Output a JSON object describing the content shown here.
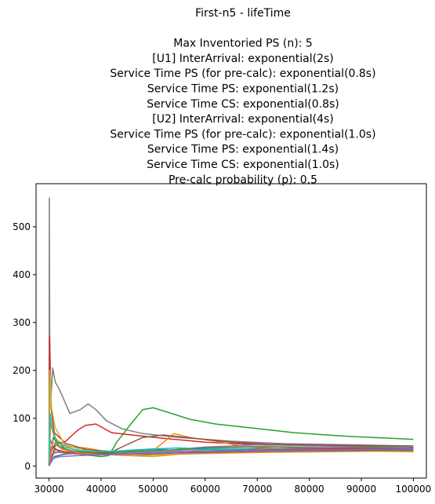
{
  "chart_data": {
    "type": "line",
    "title_lines": [
      "First-n5 - lifeTime",
      "",
      "Max Inventoried PS (n): 5",
      "[U1] InterArrival: exponential(2s)",
      "Service Time PS (for pre-calc): exponential(0.8s)",
      "Service Time PS: exponential(1.2s)",
      "Service Time CS: exponential(0.8s)",
      "[U2] InterArrival: exponential(4s)",
      "Service Time PS (for pre-calc): exponential(1.0s)",
      "Service Time PS: exponential(1.4s)",
      "Service Time CS: exponential(1.0s)",
      "Pre-calc probability (p): 0.5"
    ],
    "xlim": [
      27500,
      102500
    ],
    "ylim": [
      -25,
      590
    ],
    "x_ticks": [
      30000,
      40000,
      50000,
      60000,
      70000,
      80000,
      90000,
      100000
    ],
    "y_ticks": [
      0,
      100,
      200,
      300,
      400,
      500
    ],
    "grid": false,
    "series": [
      {
        "color": "#7f7f7f",
        "points": [
          [
            30000,
            0
          ],
          [
            30050,
            560
          ],
          [
            30150,
            180
          ],
          [
            30400,
            150
          ],
          [
            30700,
            205
          ],
          [
            31200,
            175
          ],
          [
            32000,
            160
          ],
          [
            34000,
            110
          ],
          [
            36000,
            118
          ],
          [
            37500,
            130
          ],
          [
            39000,
            118
          ],
          [
            41000,
            95
          ],
          [
            44000,
            78
          ],
          [
            48000,
            68
          ],
          [
            55000,
            60
          ],
          [
            65000,
            52
          ],
          [
            75000,
            47
          ],
          [
            85000,
            45
          ],
          [
            100000,
            42
          ]
        ]
      },
      {
        "color": "#2ca02c",
        "points": [
          [
            30000,
            20
          ],
          [
            31500,
            55
          ],
          [
            33000,
            35
          ],
          [
            36000,
            25
          ],
          [
            40000,
            20
          ],
          [
            41500,
            22
          ],
          [
            43000,
            50
          ],
          [
            45500,
            85
          ],
          [
            48000,
            118
          ],
          [
            50000,
            122
          ],
          [
            53000,
            112
          ],
          [
            57000,
            98
          ],
          [
            62000,
            88
          ],
          [
            67000,
            82
          ],
          [
            72000,
            76
          ],
          [
            77000,
            70
          ],
          [
            82000,
            66
          ],
          [
            88000,
            62
          ],
          [
            94000,
            59
          ],
          [
            100000,
            56
          ]
        ]
      },
      {
        "color": "#d62728",
        "points": [
          [
            30000,
            5
          ],
          [
            30100,
            270
          ],
          [
            30400,
            120
          ],
          [
            31000,
            70
          ],
          [
            33000,
            50
          ],
          [
            35500,
            75
          ],
          [
            37000,
            85
          ],
          [
            39000,
            88
          ],
          [
            42000,
            70
          ],
          [
            46000,
            65
          ],
          [
            52000,
            58
          ],
          [
            60000,
            50
          ],
          [
            70000,
            45
          ],
          [
            80000,
            43
          ],
          [
            90000,
            42
          ],
          [
            100000,
            40
          ]
        ]
      },
      {
        "color": "#1f77b4",
        "points": [
          [
            30000,
            5
          ],
          [
            30200,
            55
          ],
          [
            30800,
            40
          ],
          [
            32000,
            30
          ],
          [
            35000,
            28
          ],
          [
            40000,
            30
          ],
          [
            45000,
            32
          ],
          [
            50000,
            35
          ],
          [
            55000,
            33
          ],
          [
            60000,
            35
          ],
          [
            70000,
            36
          ],
          [
            80000,
            35
          ],
          [
            90000,
            34
          ],
          [
            100000,
            33
          ]
        ]
      },
      {
        "color": "#ff7f0e",
        "points": [
          [
            30000,
            2
          ],
          [
            30300,
            90
          ],
          [
            31000,
            60
          ],
          [
            32500,
            45
          ],
          [
            34000,
            40
          ],
          [
            37000,
            38
          ],
          [
            40000,
            32
          ],
          [
            45000,
            30
          ],
          [
            50000,
            32
          ],
          [
            54000,
            68
          ],
          [
            57000,
            60
          ],
          [
            62000,
            52
          ],
          [
            68000,
            40
          ],
          [
            75000,
            35
          ],
          [
            80000,
            30
          ],
          [
            90000,
            32
          ],
          [
            100000,
            30
          ]
        ]
      },
      {
        "color": "#9467bd",
        "points": [
          [
            30000,
            3
          ],
          [
            30400,
            40
          ],
          [
            31500,
            45
          ],
          [
            33000,
            35
          ],
          [
            36000,
            30
          ],
          [
            40000,
            28
          ],
          [
            45000,
            29
          ],
          [
            50000,
            27
          ],
          [
            55000,
            35
          ],
          [
            60000,
            40
          ],
          [
            65000,
            42
          ],
          [
            70000,
            45
          ],
          [
            80000,
            43
          ],
          [
            90000,
            40
          ],
          [
            100000,
            38
          ]
        ]
      },
      {
        "color": "#8c564b",
        "points": [
          [
            30000,
            4
          ],
          [
            30500,
            35
          ],
          [
            32000,
            50
          ],
          [
            34000,
            45
          ],
          [
            37000,
            35
          ],
          [
            42000,
            30
          ],
          [
            48000,
            60
          ],
          [
            52000,
            65
          ],
          [
            58000,
            58
          ],
          [
            65000,
            50
          ],
          [
            72000,
            46
          ],
          [
            82000,
            44
          ],
          [
            92000,
            43
          ],
          [
            100000,
            42
          ]
        ]
      },
      {
        "color": "#e377c2",
        "points": [
          [
            30000,
            2
          ],
          [
            30500,
            25
          ],
          [
            32000,
            30
          ],
          [
            35000,
            28
          ],
          [
            40000,
            27
          ],
          [
            45000,
            28
          ],
          [
            50000,
            30
          ],
          [
            55000,
            32
          ],
          [
            60000,
            38
          ],
          [
            65000,
            40
          ],
          [
            70000,
            42
          ],
          [
            80000,
            40
          ],
          [
            90000,
            39
          ],
          [
            100000,
            37
          ]
        ]
      },
      {
        "color": "#bcbd22",
        "points": [
          [
            30000,
            5
          ],
          [
            30150,
            200
          ],
          [
            30500,
            120
          ],
          [
            31200,
            80
          ],
          [
            33000,
            45
          ],
          [
            36000,
            35
          ],
          [
            40000,
            25
          ],
          [
            45000,
            22
          ],
          [
            50000,
            20
          ],
          [
            55000,
            25
          ],
          [
            60000,
            28
          ],
          [
            70000,
            30
          ],
          [
            80000,
            32
          ],
          [
            90000,
            34
          ],
          [
            100000,
            35
          ]
        ]
      },
      {
        "color": "#17becf",
        "points": [
          [
            30000,
            3
          ],
          [
            30200,
            110
          ],
          [
            30600,
            80
          ],
          [
            31500,
            50
          ],
          [
            33000,
            40
          ],
          [
            36000,
            32
          ],
          [
            40000,
            30
          ],
          [
            45000,
            33
          ],
          [
            50000,
            36
          ],
          [
            55000,
            38
          ],
          [
            60000,
            36
          ],
          [
            70000,
            35
          ],
          [
            80000,
            33
          ],
          [
            90000,
            33
          ],
          [
            100000,
            32
          ]
        ]
      },
      {
        "color": "#1f77b4",
        "points": [
          [
            30000,
            1
          ],
          [
            31000,
            20
          ],
          [
            33000,
            25
          ],
          [
            37000,
            28
          ],
          [
            42000,
            26
          ],
          [
            48000,
            25
          ],
          [
            55000,
            28
          ],
          [
            65000,
            30
          ],
          [
            75000,
            32
          ],
          [
            85000,
            33
          ],
          [
            100000,
            34
          ]
        ]
      },
      {
        "color": "#2ca02c",
        "points": [
          [
            30000,
            2
          ],
          [
            30800,
            60
          ],
          [
            32000,
            40
          ],
          [
            35000,
            30
          ],
          [
            40000,
            28
          ],
          [
            46000,
            30
          ],
          [
            52000,
            33
          ],
          [
            60000,
            38
          ],
          [
            70000,
            40
          ],
          [
            80000,
            39
          ],
          [
            90000,
            38
          ],
          [
            100000,
            37
          ]
        ]
      },
      {
        "color": "#d62728",
        "points": [
          [
            30000,
            3
          ],
          [
            31000,
            35
          ],
          [
            33000,
            30
          ],
          [
            37000,
            27
          ],
          [
            43000,
            25
          ],
          [
            50000,
            28
          ],
          [
            58000,
            30
          ],
          [
            66000,
            33
          ],
          [
            76000,
            36
          ],
          [
            86000,
            37
          ],
          [
            100000,
            36
          ]
        ]
      },
      {
        "color": "#ff7f0e",
        "points": [
          [
            30000,
            1
          ],
          [
            30700,
            50
          ],
          [
            32500,
            35
          ],
          [
            36000,
            27
          ],
          [
            41000,
            24
          ],
          [
            47000,
            22
          ],
          [
            55000,
            25
          ],
          [
            63000,
            27
          ],
          [
            72000,
            29
          ],
          [
            82000,
            30
          ],
          [
            92000,
            31
          ],
          [
            100000,
            31
          ]
        ]
      },
      {
        "color": "#7f7f7f",
        "points": [
          [
            30000,
            2
          ],
          [
            31000,
            30
          ],
          [
            34000,
            26
          ],
          [
            39000,
            24
          ],
          [
            45000,
            26
          ],
          [
            52000,
            29
          ],
          [
            60000,
            32
          ],
          [
            70000,
            35
          ],
          [
            80000,
            38
          ],
          [
            90000,
            40
          ],
          [
            100000,
            41
          ]
        ]
      },
      {
        "color": "#9467bd",
        "points": [
          [
            30000,
            1
          ],
          [
            30500,
            15
          ],
          [
            32000,
            20
          ],
          [
            36000,
            22
          ],
          [
            42000,
            24
          ],
          [
            50000,
            27
          ],
          [
            58000,
            30
          ],
          [
            68000,
            32
          ],
          [
            78000,
            34
          ],
          [
            88000,
            35
          ],
          [
            100000,
            36
          ]
        ]
      }
    ]
  }
}
